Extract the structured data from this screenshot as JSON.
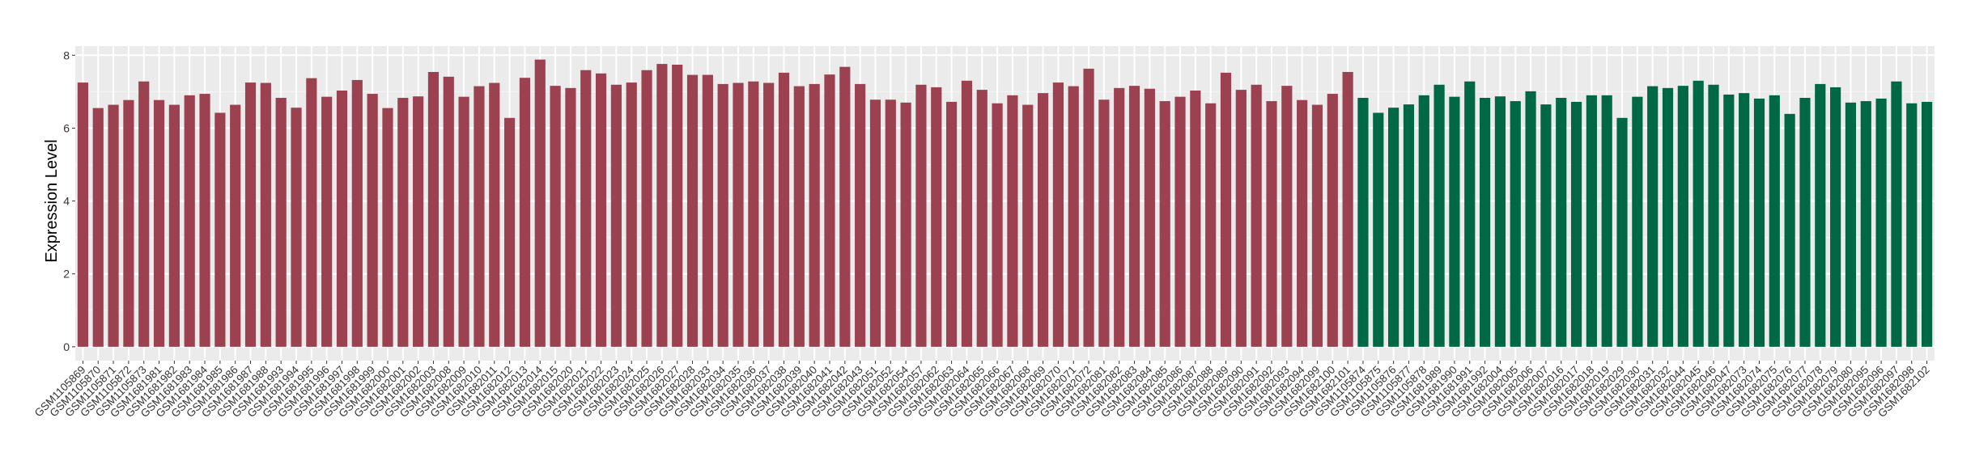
{
  "chart_data": {
    "type": "bar",
    "title": "",
    "xlabel": "",
    "ylabel": "Expression Level",
    "ylim": [
      -0.38,
      8.25
    ],
    "yticks": [
      0,
      2,
      4,
      6,
      8
    ],
    "grid": true,
    "legend": "none",
    "colors": {
      "group1": "#9b4150",
      "group2": "#016846",
      "panel": "#ebebeb",
      "grid": "#ffffff"
    },
    "categories": [
      "GSM1105869",
      "GSM1105870",
      "GSM1105871",
      "GSM1105872",
      "GSM1105873",
      "GSM1681981",
      "GSM1681982",
      "GSM1681983",
      "GSM1681984",
      "GSM1681985",
      "GSM1681986",
      "GSM1681987",
      "GSM1681988",
      "GSM1681993",
      "GSM1681994",
      "GSM1681995",
      "GSM1681996",
      "GSM1681997",
      "GSM1681998",
      "GSM1681999",
      "GSM1682000",
      "GSM1682001",
      "GSM1682002",
      "GSM1682003",
      "GSM1682008",
      "GSM1682009",
      "GSM1682010",
      "GSM1682011",
      "GSM1682012",
      "GSM1682013",
      "GSM1682014",
      "GSM1682015",
      "GSM1682020",
      "GSM1682021",
      "GSM1682022",
      "GSM1682023",
      "GSM1682024",
      "GSM1682025",
      "GSM1682026",
      "GSM1682027",
      "GSM1682028",
      "GSM1682033",
      "GSM1682034",
      "GSM1682035",
      "GSM1682036",
      "GSM1682037",
      "GSM1682038",
      "GSM1682039",
      "GSM1682040",
      "GSM1682041",
      "GSM1682042",
      "GSM1682043",
      "GSM1682051",
      "GSM1682052",
      "GSM1682054",
      "GSM1682057",
      "GSM1682062",
      "GSM1682063",
      "GSM1682064",
      "GSM1682065",
      "GSM1682066",
      "GSM1682067",
      "GSM1682068",
      "GSM1682069",
      "GSM1682070",
      "GSM1682071",
      "GSM1682072",
      "GSM1682081",
      "GSM1682082",
      "GSM1682083",
      "GSM1682084",
      "GSM1682085",
      "GSM1682086",
      "GSM1682087",
      "GSM1682088",
      "GSM1682089",
      "GSM1682090",
      "GSM1682091",
      "GSM1682092",
      "GSM1682093",
      "GSM1682094",
      "GSM1682099",
      "GSM1682100",
      "GSM1682101",
      "GSM1105874",
      "GSM1105875",
      "GSM1105876",
      "GSM1105877",
      "GSM1105878",
      "GSM1681989",
      "GSM1681990",
      "GSM1681991",
      "GSM1681992",
      "GSM1682004",
      "GSM1682005",
      "GSM1682006",
      "GSM1682007",
      "GSM1682016",
      "GSM1682017",
      "GSM1682018",
      "GSM1682019",
      "GSM1682029",
      "GSM1682030",
      "GSM1682031",
      "GSM1682032",
      "GSM1682044",
      "GSM1682045",
      "GSM1682046",
      "GSM1682047",
      "GSM1682073",
      "GSM1682074",
      "GSM1682075",
      "GSM1682076",
      "GSM1682077",
      "GSM1682078",
      "GSM1682079",
      "GSM1682080",
      "GSM1682095",
      "GSM1682096",
      "GSM1682097",
      "GSM1682098",
      "GSM1682102"
    ],
    "values": [
      7.25,
      6.55,
      6.64,
      6.77,
      7.28,
      6.77,
      6.64,
      6.9,
      6.94,
      6.42,
      6.64,
      7.25,
      7.24,
      6.83,
      6.56,
      7.37,
      6.86,
      7.03,
      7.32,
      6.94,
      6.55,
      6.83,
      6.87,
      7.54,
      7.41,
      6.86,
      7.15,
      7.24,
      6.28,
      7.38,
      7.88,
      7.16,
      7.1,
      7.59,
      7.5,
      7.19,
      7.25,
      7.59,
      7.76,
      7.74,
      7.46,
      7.46,
      7.21,
      7.24,
      7.28,
      7.24,
      7.52,
      7.15,
      7.21,
      7.47,
      7.68,
      7.21,
      6.78,
      6.78,
      6.7,
      7.19,
      7.12,
      6.72,
      7.3,
      7.05,
      6.68,
      6.9,
      6.64,
      6.96,
      7.25,
      7.15,
      7.63,
      6.78,
      7.1,
      7.16,
      7.08,
      6.74,
      6.86,
      7.03,
      6.68,
      7.52,
      7.05,
      7.19,
      6.74,
      7.16,
      6.77,
      6.64,
      6.94,
      7.54,
      6.83,
      6.42,
      6.56,
      6.65,
      6.9,
      7.19,
      6.86,
      7.28,
      6.83,
      6.87,
      6.74,
      7.01,
      6.65,
      6.83,
      6.72,
      6.9,
      6.9,
      6.28,
      6.86,
      7.15,
      7.1,
      7.16,
      7.3,
      7.19,
      6.92,
      6.96,
      6.81,
      6.9,
      6.39,
      6.83,
      7.21,
      7.12,
      6.7,
      6.74,
      6.81,
      7.28,
      6.68,
      6.72
    ],
    "groups_count": [
      84,
      38
    ]
  }
}
